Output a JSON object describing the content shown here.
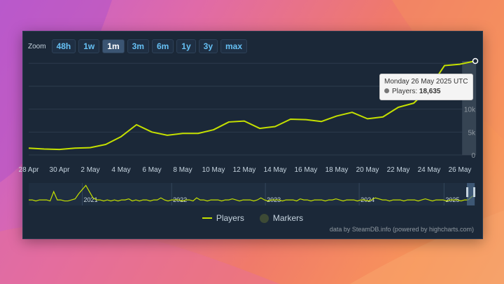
{
  "zoom": {
    "label": "Zoom",
    "buttons": [
      {
        "label": "48h",
        "active": false
      },
      {
        "label": "1w",
        "active": false
      },
      {
        "label": "1m",
        "active": true
      },
      {
        "label": "3m",
        "active": false
      },
      {
        "label": "6m",
        "active": false
      },
      {
        "label": "1y",
        "active": false
      },
      {
        "label": "3y",
        "active": false
      },
      {
        "label": "max",
        "active": false
      }
    ]
  },
  "tooltip": {
    "date": "Monday 26 May 2025 UTC",
    "series_label": "Players:",
    "value": "18,635"
  },
  "legend": {
    "players": "Players",
    "markers": "Markers"
  },
  "credit": "data by SteamDB.info (powered by highcharts.com)",
  "colors": {
    "line": "#c5e000",
    "panel": "#1b2838",
    "accent": "#66c0f4"
  },
  "chart_data": {
    "type": "line",
    "title": "",
    "series": [
      {
        "name": "Players",
        "values": [
          1500,
          1300,
          1200,
          1500,
          1600,
          2300,
          4000,
          6600,
          5000,
          4300,
          4700,
          4700,
          5500,
          7200,
          7400,
          5800,
          6200,
          7800,
          7700,
          7300,
          8500,
          9300,
          7900,
          8300,
          10400,
          11300,
          14500,
          19500,
          19800,
          20500
        ]
      }
    ],
    "x": [
      0,
      1,
      2,
      3,
      4,
      5,
      6,
      7,
      8,
      9,
      10,
      11,
      12,
      13,
      14,
      15,
      16,
      17,
      18,
      19,
      20,
      21,
      22,
      23,
      24,
      25,
      26,
      27,
      28,
      29
    ],
    "x_ticks": [
      {
        "x": 0,
        "label": "28 Apr"
      },
      {
        "x": 2,
        "label": "30 Apr"
      },
      {
        "x": 4,
        "label": "2 May"
      },
      {
        "x": 6,
        "label": "4 May"
      },
      {
        "x": 8,
        "label": "6 May"
      },
      {
        "x": 10,
        "label": "8 May"
      },
      {
        "x": 12,
        "label": "10 May"
      },
      {
        "x": 14,
        "label": "12 May"
      },
      {
        "x": 16,
        "label": "14 May"
      },
      {
        "x": 18,
        "label": "16 May"
      },
      {
        "x": 20,
        "label": "18 May"
      },
      {
        "x": 22,
        "label": "20 May"
      },
      {
        "x": 24,
        "label": "22 May"
      },
      {
        "x": 26,
        "label": "24 May"
      },
      {
        "x": 28,
        "label": "26 May"
      }
    ],
    "y_ticks": [
      {
        "v": 0,
        "label": "0"
      },
      {
        "v": 5000,
        "label": "5k"
      },
      {
        "v": 10000,
        "label": "10k"
      }
    ],
    "ylim": [
      0,
      20500
    ],
    "highlight_x": 28.6
  },
  "navigator": {
    "year_labels": [
      "2021",
      "2022",
      "2023",
      "2024",
      "2025"
    ],
    "values": [
      4,
      4,
      3,
      4,
      4,
      4,
      3,
      12,
      4,
      4,
      3,
      3,
      4,
      5,
      10,
      14,
      18,
      12,
      6,
      4,
      4,
      3,
      4,
      3,
      4,
      3,
      4,
      4,
      5,
      3,
      4,
      3,
      4,
      4,
      3,
      4,
      4,
      6,
      4,
      3,
      4,
      4,
      4,
      3,
      4,
      4,
      3,
      6,
      4,
      4,
      3,
      4,
      4,
      4,
      3,
      4,
      4,
      5,
      4,
      3,
      4,
      4,
      4,
      3,
      4,
      6,
      4,
      3,
      4,
      4,
      4,
      3,
      4,
      4,
      4,
      3,
      5,
      4,
      4,
      3,
      4,
      4,
      4,
      3,
      4,
      4,
      5,
      4,
      3,
      4,
      4,
      4,
      3,
      4,
      4,
      3,
      4,
      6,
      5,
      4,
      4,
      3,
      4,
      4,
      4,
      3,
      4,
      4,
      4,
      3,
      4,
      5,
      4,
      3,
      4,
      4,
      4,
      3,
      4,
      4,
      4,
      3,
      4,
      4,
      7,
      9
    ]
  }
}
